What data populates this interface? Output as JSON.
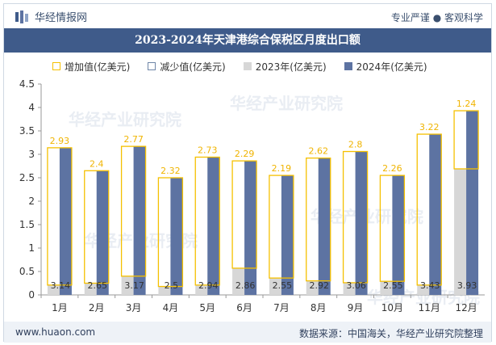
{
  "header": {
    "brand": "华经情报网",
    "tagline": "专业严谨 ● 客观科学"
  },
  "title": "2023-2024年天津港综合保税区月度出口额",
  "legend": {
    "increase": "增加值(亿美元)",
    "decrease": "减少值(亿美元)",
    "y2023": "2023年(亿美元)",
    "y2024": "2024年(亿美元)"
  },
  "watermark": "华经产业研究院",
  "footer": {
    "url": "www.huaon.com",
    "source": "数据来源：中国海关，华经产业研究院整理"
  },
  "colors": {
    "increase": "#f5c000",
    "increase_label": "#f0b400",
    "bar2024": "#5d73a2",
    "bar2023": "#d7d7d7",
    "title_bg": "#3f5b8a"
  },
  "chart_data": {
    "type": "bar",
    "categories": [
      "1月",
      "2月",
      "3月",
      "4月",
      "5月",
      "6月",
      "7月",
      "8月",
      "9月",
      "10月",
      "11月",
      "12月"
    ],
    "series": [
      {
        "name": "2023年(亿美元)",
        "values": [
          0.21,
          0.25,
          0.4,
          0.18,
          0.21,
          0.57,
          0.36,
          0.3,
          0.26,
          0.29,
          0.21,
          2.69
        ]
      },
      {
        "name": "2024年(亿美元)",
        "values": [
          3.14,
          2.65,
          3.17,
          2.5,
          2.94,
          2.86,
          2.55,
          2.92,
          3.06,
          2.55,
          3.43,
          3.93
        ]
      },
      {
        "name": "增加值(亿美元)",
        "values": [
          2.93,
          2.4,
          2.77,
          2.32,
          2.73,
          2.29,
          2.19,
          2.62,
          2.8,
          2.26,
          3.22,
          1.24
        ]
      },
      {
        "name": "减少值(亿美元)",
        "values": [
          0,
          0,
          0,
          0,
          0,
          0,
          0,
          0,
          0,
          0,
          0,
          0
        ]
      }
    ],
    "ylim": [
      0,
      4.5
    ],
    "yticks": [
      "0",
      "0.5",
      "1",
      "1.5",
      "2",
      "2.5",
      "3",
      "3.5",
      "4",
      "4.5"
    ],
    "increase_labels": [
      "2.93",
      "2.4",
      "2.77",
      "2.32",
      "2.73",
      "2.29",
      "2.19",
      "2.62",
      "2.8",
      "2.26",
      "3.22",
      "1.24"
    ],
    "value_labels_2024": [
      "3.14",
      "2.65",
      "3.17",
      "2.5",
      "2.94",
      "2.86",
      "2.55",
      "2.92",
      "3.06",
      "2.55",
      "3.43",
      "3.93"
    ],
    "grid": false,
    "legend_position": "top"
  }
}
